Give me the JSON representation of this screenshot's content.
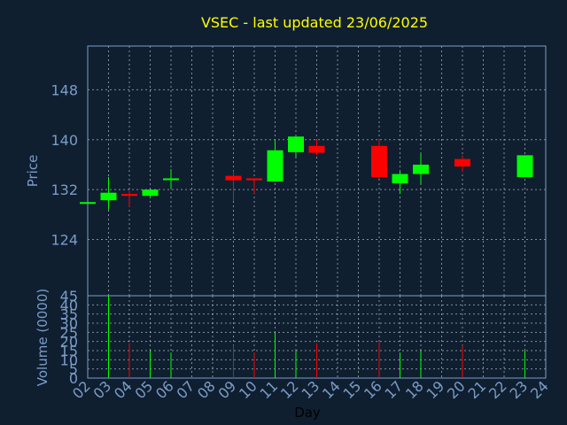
{
  "chart_data": {
    "type": "candlestick",
    "title": "VSEC - last updated 23/06/2025",
    "xlabel": "Day",
    "price_axis": {
      "ylabel": "Price",
      "ylim": [
        115,
        155
      ],
      "ticks": [
        124,
        132,
        140,
        148
      ]
    },
    "volume_axis": {
      "ylabel": "Volume (0000)",
      "ylim": [
        0,
        45
      ],
      "ticks": [
        0,
        5,
        10,
        15,
        20,
        25,
        30,
        35,
        40,
        45
      ]
    },
    "x_ticks": [
      "02",
      "03",
      "04",
      "05",
      "06",
      "07",
      "08",
      "09",
      "10",
      "11",
      "12",
      "13",
      "14",
      "15",
      "16",
      "17",
      "18",
      "19",
      "20",
      "21",
      "22",
      "23",
      "24"
    ],
    "x_range": [
      2,
      24
    ],
    "grid": true,
    "colors": {
      "up": "#00ff00",
      "down": "#ff0000",
      "background": "#0f1f30",
      "title": "#ffff00",
      "axis": "#7b9cc8"
    },
    "candles": [
      {
        "day": 2,
        "open": 130.0,
        "high": 130.0,
        "low": 130.0,
        "close": 130.0,
        "volume": 0
      },
      {
        "day": 3,
        "open": 130.3,
        "high": 134.0,
        "low": 128.8,
        "close": 131.5,
        "volume": 45
      },
      {
        "day": 4,
        "open": 131.3,
        "high": 131.8,
        "low": 129.2,
        "close": 131.0,
        "volume": 19
      },
      {
        "day": 5,
        "open": 131.0,
        "high": 132.0,
        "low": 130.8,
        "close": 132.0,
        "volume": 15
      },
      {
        "day": 6,
        "open": 133.6,
        "high": 135.3,
        "low": 132.2,
        "close": 133.8,
        "volume": 14
      },
      {
        "day": 9,
        "open": 134.2,
        "high": 135.0,
        "low": 130.2,
        "close": 133.5,
        "volume": 18
      },
      {
        "day": 10,
        "open": 133.8,
        "high": 133.8,
        "low": 131.4,
        "close": 133.5,
        "volume": 14
      },
      {
        "day": 11,
        "open": 133.3,
        "high": 140.0,
        "low": 133.3,
        "close": 138.3,
        "volume": 25
      },
      {
        "day": 12,
        "open": 138.0,
        "high": 140.5,
        "low": 137.2,
        "close": 140.5,
        "volume": 15
      },
      {
        "day": 13,
        "open": 139.0,
        "high": 140.0,
        "low": 137.5,
        "close": 137.9,
        "volume": 19
      },
      {
        "day": 16,
        "open": 139.0,
        "high": 140.0,
        "low": 133.8,
        "close": 134.0,
        "volume": 20
      },
      {
        "day": 17,
        "open": 133.0,
        "high": 135.0,
        "low": 131.3,
        "close": 134.5,
        "volume": 14
      },
      {
        "day": 18,
        "open": 134.5,
        "high": 137.8,
        "low": 133.0,
        "close": 136.0,
        "volume": 15
      },
      {
        "day": 20,
        "open": 136.9,
        "high": 137.5,
        "low": 134.8,
        "close": 135.7,
        "volume": 18
      },
      {
        "day": 23,
        "open": 134.0,
        "high": 137.5,
        "low": 134.0,
        "close": 137.5,
        "volume": 15
      }
    ]
  }
}
